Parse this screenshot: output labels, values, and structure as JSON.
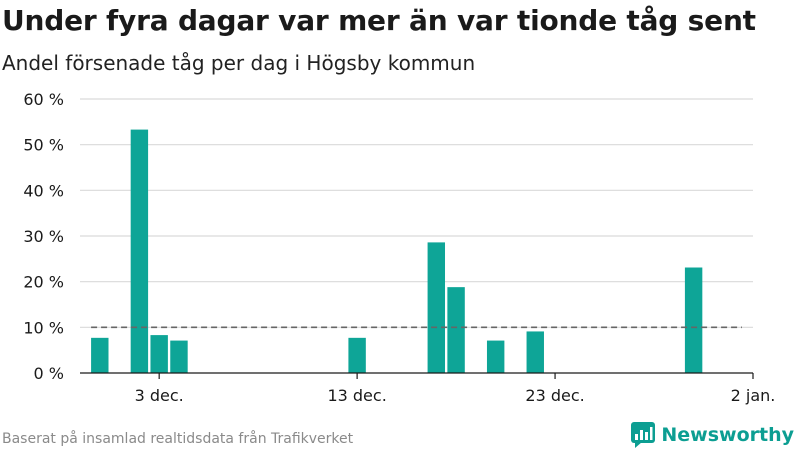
{
  "title": "Under fyra dagar var mer än var tionde tåg sent",
  "subtitle": "Andel försenade tåg per dag i Högsby kommun",
  "footer": "Baserat på insamlad realtidsdata från Trafikverket",
  "brand": {
    "name": "Newsworthy",
    "color": "#0c9e92",
    "icon": "bar-chart-bubble-icon"
  },
  "chart_data": {
    "type": "bar",
    "y_unit": "percent",
    "ylim": [
      0,
      60
    ],
    "y_ticks": [
      0,
      10,
      20,
      30,
      40,
      50,
      60
    ],
    "y_tick_labels": [
      "0 %",
      "10 %",
      "20 %",
      "30 %",
      "40 %",
      "50 %",
      "60 %"
    ],
    "x_range": [
      "2023-11-29",
      "2024-01-02"
    ],
    "x_ticks": [
      "2023-12-03",
      "2023-12-13",
      "2023-12-23",
      "2024-01-02"
    ],
    "x_tick_labels": [
      "3 dec.",
      "13 dec.",
      "23 dec.",
      "2 jan."
    ],
    "grid": true,
    "bar_color": "#0ea597",
    "bars": [
      {
        "date": "2023-11-30",
        "value": 7.7
      },
      {
        "date": "2023-12-02",
        "value": 53.3
      },
      {
        "date": "2023-12-03",
        "value": 8.3
      },
      {
        "date": "2023-12-04",
        "value": 7.1
      },
      {
        "date": "2023-12-13",
        "value": 7.7
      },
      {
        "date": "2023-12-17",
        "value": 28.6
      },
      {
        "date": "2023-12-18",
        "value": 18.8
      },
      {
        "date": "2023-12-20",
        "value": 7.1
      },
      {
        "date": "2023-12-22",
        "value": 9.1
      },
      {
        "date": "2023-12-30",
        "value": 23.1
      }
    ],
    "reference_line": {
      "value": 10,
      "from": "2023-11-30",
      "to": "2024-01-01",
      "style": "dashed",
      "color": "#666666"
    }
  }
}
